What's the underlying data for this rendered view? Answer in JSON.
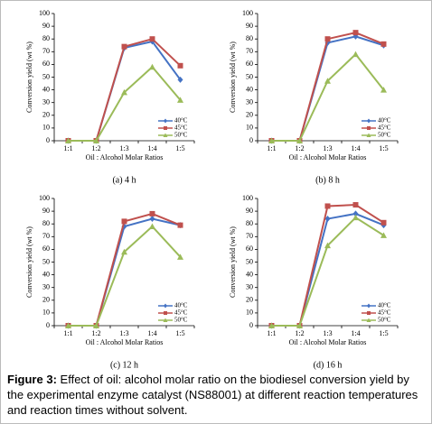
{
  "chart_data": [
    {
      "type": "line",
      "subtitle": "(a) 4 h",
      "x_label": "Oil : Alcohol Molar Ratios",
      "y_label": "Conversion yield (wt %)",
      "categories": [
        "1:1",
        "1:2",
        "1:3",
        "1:4",
        "1:5"
      ],
      "series": [
        {
          "name": "40°C",
          "color": "#4472c4",
          "marker": "diamond",
          "values": [
            0,
            0,
            73,
            78,
            48
          ]
        },
        {
          "name": "45°C",
          "color": "#c0504d",
          "marker": "square",
          "values": [
            0,
            0,
            74,
            80,
            59
          ]
        },
        {
          "name": "50°C",
          "color": "#9bbb59",
          "marker": "triangle",
          "values": [
            0,
            0,
            38,
            58,
            32
          ]
        }
      ],
      "ylim": [
        0,
        100
      ],
      "yticks": [
        0,
        10,
        20,
        30,
        40,
        50,
        60,
        70,
        80,
        90,
        100
      ],
      "legend": "lower right"
    },
    {
      "type": "line",
      "subtitle": "(b) 8 h",
      "x_label": "Oil : Alcohol Molar Ratios",
      "y_label": "Conversion yield (wt %)",
      "categories": [
        "1:1",
        "1:2",
        "1:3",
        "1:4",
        "1:5"
      ],
      "series": [
        {
          "name": "40°C",
          "color": "#4472c4",
          "marker": "diamond",
          "values": [
            0,
            0,
            77,
            82,
            75
          ]
        },
        {
          "name": "45°C",
          "color": "#c0504d",
          "marker": "square",
          "values": [
            0,
            0,
            80,
            85,
            76
          ]
        },
        {
          "name": "50°C",
          "color": "#9bbb59",
          "marker": "triangle",
          "values": [
            0,
            0,
            47,
            68,
            40
          ]
        }
      ],
      "ylim": [
        0,
        100
      ],
      "yticks": [
        0,
        10,
        20,
        30,
        40,
        50,
        60,
        70,
        80,
        90,
        100
      ],
      "legend": "lower right"
    },
    {
      "type": "line",
      "subtitle": "(c) 12 h",
      "x_label": "Oil : Alcohol Molar Ratios",
      "y_label": "Conversion yield (wt %)",
      "categories": [
        "1:1",
        "1:2",
        "1:3",
        "1:4",
        "1:5"
      ],
      "series": [
        {
          "name": "40°C",
          "color": "#4472c4",
          "marker": "diamond",
          "values": [
            0,
            0,
            78,
            84,
            79
          ]
        },
        {
          "name": "45°C",
          "color": "#c0504d",
          "marker": "square",
          "values": [
            0,
            0,
            82,
            88,
            79
          ]
        },
        {
          "name": "50°C",
          "color": "#9bbb59",
          "marker": "triangle",
          "values": [
            0,
            0,
            58,
            78,
            54
          ]
        }
      ],
      "ylim": [
        0,
        100
      ],
      "yticks": [
        0,
        10,
        20,
        30,
        40,
        50,
        60,
        70,
        80,
        90,
        100
      ],
      "legend": "lower right"
    },
    {
      "type": "line",
      "subtitle": "(d) 16 h",
      "x_label": "Oil : Alcohol Molar Ratios",
      "y_label": "Conversion yield (wt %)",
      "categories": [
        "1:1",
        "1:2",
        "1:3",
        "1:4",
        "1:5"
      ],
      "series": [
        {
          "name": "40°C",
          "color": "#4472c4",
          "marker": "diamond",
          "values": [
            0,
            0,
            84,
            88,
            79
          ]
        },
        {
          "name": "45°C",
          "color": "#c0504d",
          "marker": "square",
          "values": [
            0,
            0,
            94,
            95,
            81
          ]
        },
        {
          "name": "50°C",
          "color": "#9bbb59",
          "marker": "triangle",
          "values": [
            0,
            0,
            63,
            85,
            71
          ]
        }
      ],
      "ylim": [
        0,
        100
      ],
      "yticks": [
        0,
        10,
        20,
        30,
        40,
        50,
        60,
        70,
        80,
        90,
        100
      ],
      "legend": "lower right"
    }
  ],
  "caption": {
    "label": "Figure 3:",
    "text": "Effect of oil: alcohol molar ratio on the biodiesel conversion yield by the experimental enzyme catalyst (NS88001) at different reaction temperatures and reaction times without solvent."
  }
}
